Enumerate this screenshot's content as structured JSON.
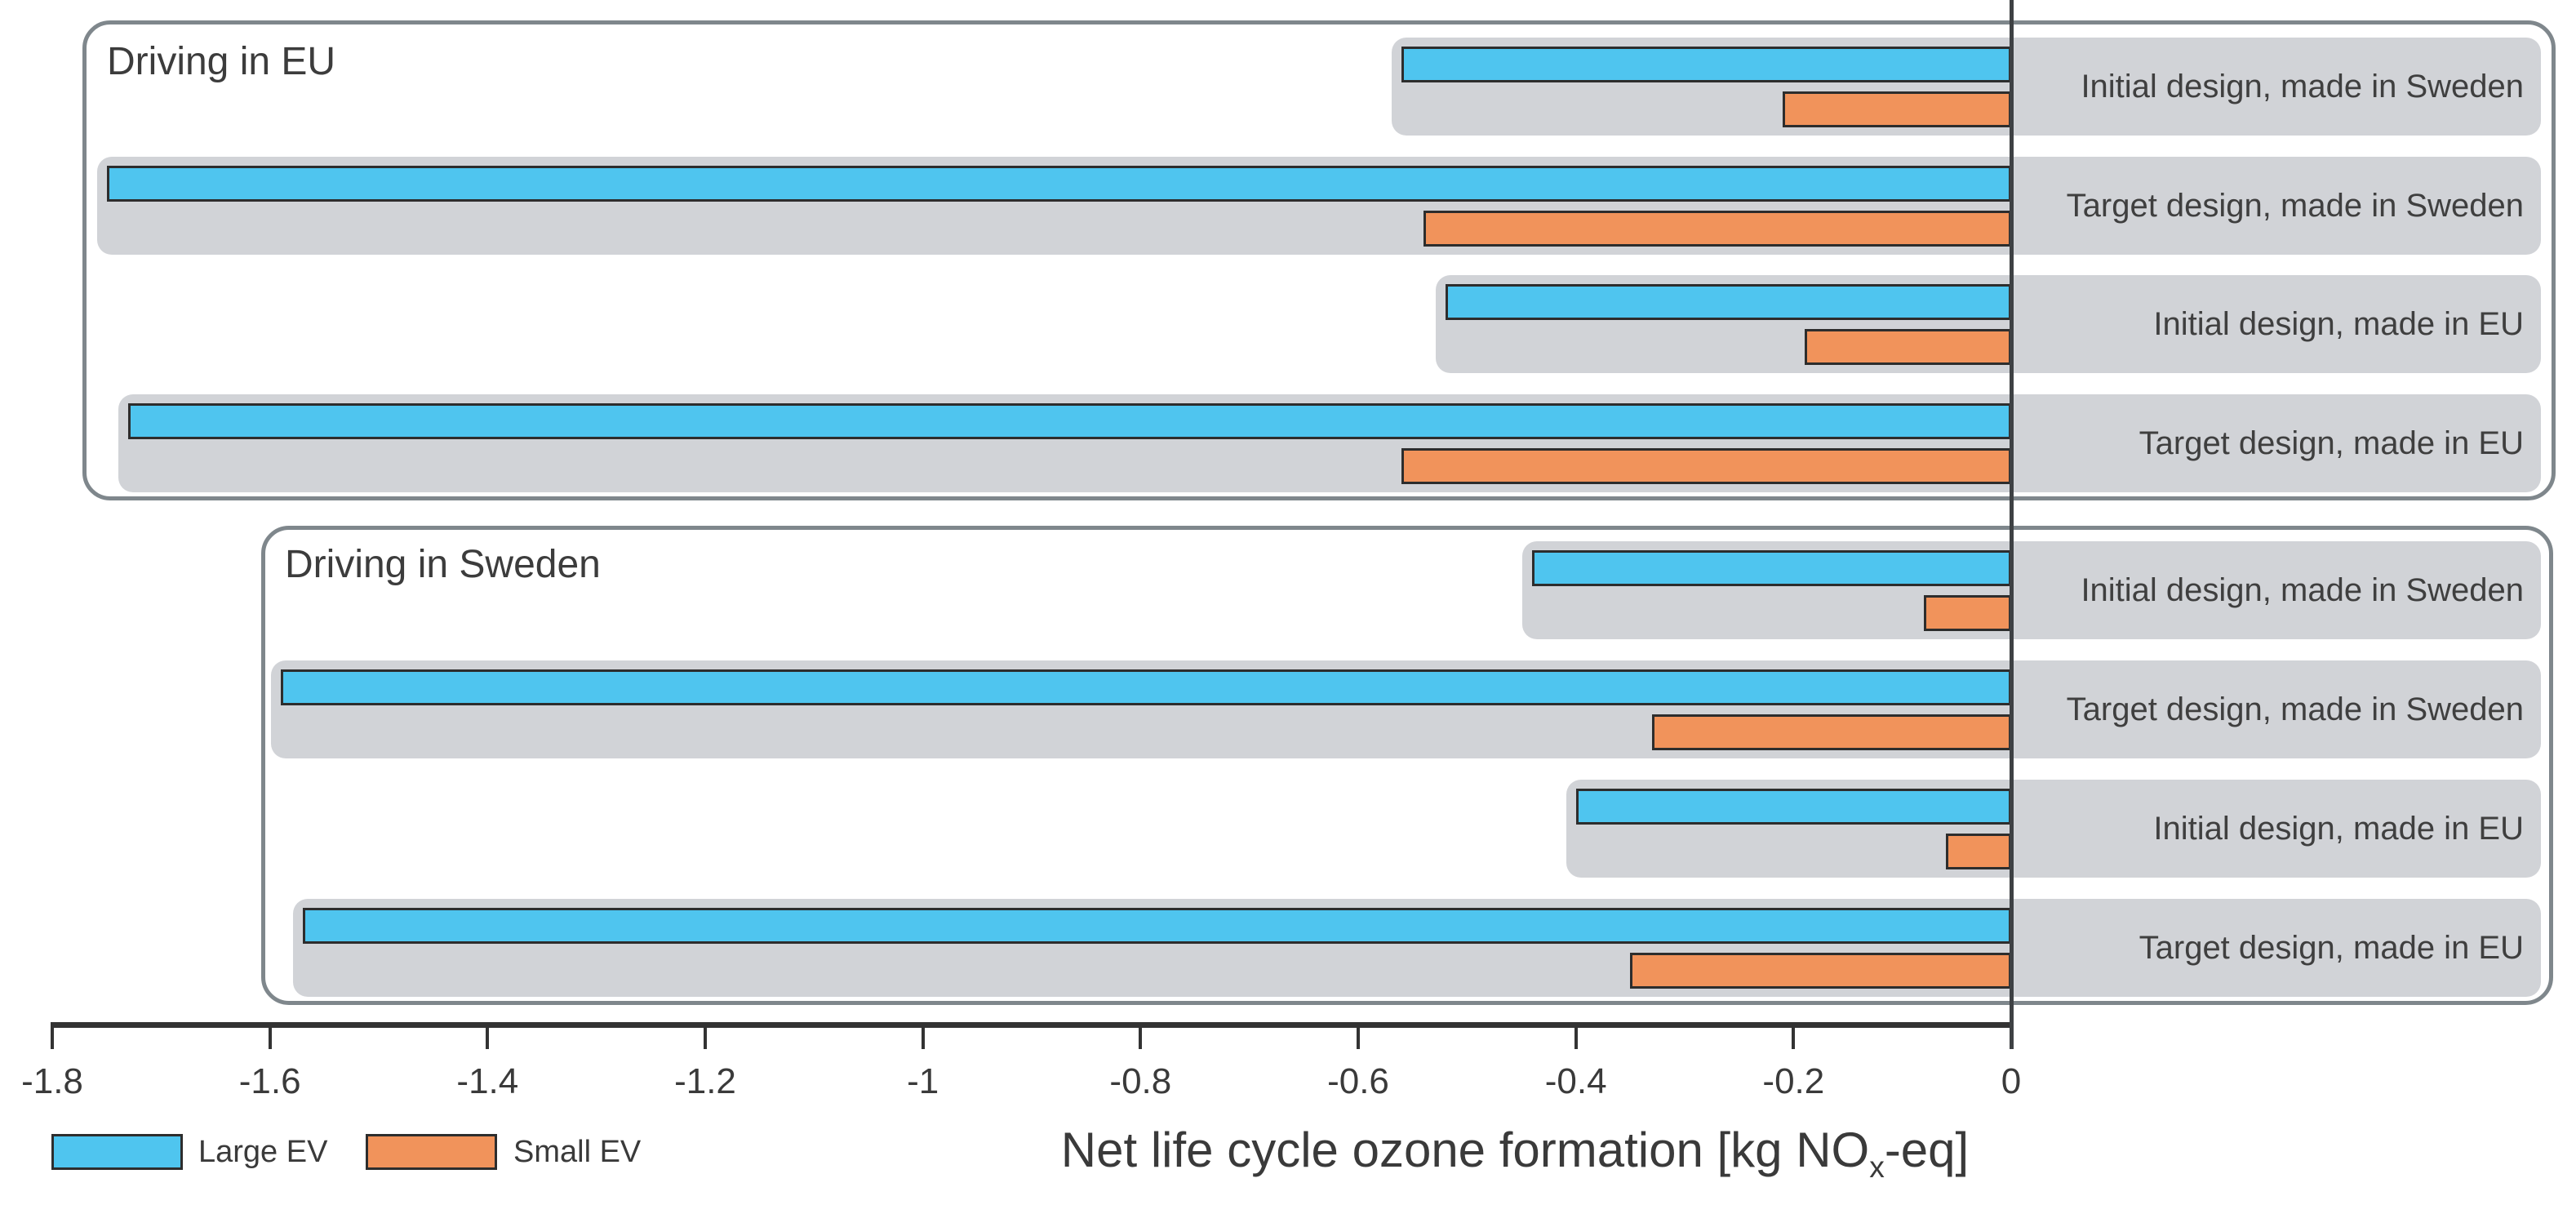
{
  "chart_data": {
    "type": "bar",
    "orientation": "horizontal",
    "xlabel": "Net life cycle ozone formation [kg NOx-eq]",
    "xlabel_parts": {
      "prefix": "Net life cycle ozone formation [kg NO",
      "subscript": "x",
      "suffix": "-eq]"
    },
    "xlim": [
      -1.8,
      0
    ],
    "xticks": {
      "values": [
        -1.8,
        -1.6,
        -1.4,
        -1.2,
        -1.0,
        -0.8,
        -0.6,
        -0.4,
        -0.2,
        0
      ],
      "labels": [
        "-1.8",
        "-1.6",
        "-1.4",
        "-1.2",
        "-1",
        "-0.8",
        "-0.6",
        "-0.4",
        "-0.2",
        "0"
      ]
    },
    "grid": false,
    "legend_position": "bottom-left",
    "panels": [
      {
        "title": "Driving in EU",
        "rows": [
          {
            "label": "Initial design, made in Sweden",
            "large_ev": -0.56,
            "small_ev": -0.21
          },
          {
            "label": "Target design, made in Sweden",
            "large_ev": -1.75,
            "small_ev": -0.54
          },
          {
            "label": "Initial design, made in EU",
            "large_ev": -0.52,
            "small_ev": -0.19
          },
          {
            "label": "Target design, made in EU",
            "large_ev": -1.73,
            "small_ev": -0.56
          }
        ]
      },
      {
        "title": "Driving in Sweden",
        "rows": [
          {
            "label": "Initial design, made in Sweden",
            "large_ev": -0.44,
            "small_ev": -0.08
          },
          {
            "label": "Target design, made in Sweden",
            "large_ev": -1.59,
            "small_ev": -0.33
          },
          {
            "label": "Initial design, made in EU",
            "large_ev": -0.4,
            "small_ev": -0.06
          },
          {
            "label": "Target design, made in EU",
            "large_ev": -1.57,
            "small_ev": -0.35
          }
        ]
      }
    ],
    "legend": [
      {
        "label": "Large EV",
        "color": "#4FC5EF"
      },
      {
        "label": "Small EV",
        "color": "#F1935B"
      }
    ]
  },
  "colors": {
    "large_ev": "#4FC5EF",
    "small_ev": "#F1935B",
    "row_background": "#D1D3D7",
    "panel_border": "#7F878C",
    "bar_border": "#2D2D2D",
    "axis": "#333333",
    "zero_line": "#3E4144",
    "text": "#3A3A3A"
  }
}
